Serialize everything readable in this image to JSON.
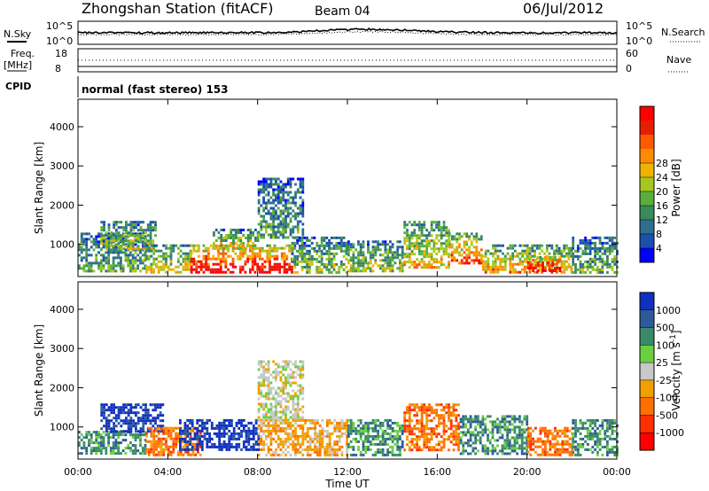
{
  "header": {
    "station": "Zhongshan Station (fitACF)",
    "beam": "Beam 04",
    "date": "06/Jul/2012"
  },
  "noise_panel": {
    "left_label": "N.Sky",
    "left_ticks": [
      "10^5",
      "10^0"
    ],
    "right_ticks": [
      "10^5",
      "10^0"
    ],
    "right_label": "N.Search"
  },
  "freq_panel": {
    "left_label_1": "Freq.",
    "left_label_2": "[MHz]",
    "left_ticks": [
      "18",
      "8"
    ],
    "right_ticks": [
      "60",
      "0"
    ],
    "right_label": "Nave"
  },
  "cpid": {
    "label": "CPID",
    "value": "normal (fast stereo) 153"
  },
  "chart_data": [
    {
      "type": "heatmap",
      "name": "power",
      "ylabel": "Slant Range [km]",
      "yticks": [
        "1000",
        "2000",
        "3000",
        "4000"
      ],
      "ytick_values": [
        1000,
        2000,
        3000,
        4000
      ],
      "ylim": [
        180,
        4700
      ],
      "colorbar": {
        "label": "Power [dB]",
        "ticks": [
          "4",
          "8",
          "12",
          "16",
          "20",
          "24",
          "28"
        ],
        "colors": [
          "#0000ff",
          "#1a4fb0",
          "#2e6e8e",
          "#3a8a5a",
          "#5aaf3a",
          "#a6c81e",
          "#f0b400",
          "#ff8c00",
          "#ff5a00",
          "#e61e00",
          "#ff0000"
        ]
      },
      "bands": [
        {
          "t": [
            0.0,
            3.0
          ],
          "r": [
            300,
            1300
          ],
          "level": 0.35
        },
        {
          "t": [
            1.0,
            3.5
          ],
          "r": [
            900,
            1600
          ],
          "level": 0.45
        },
        {
          "t": [
            3.0,
            5.0
          ],
          "r": [
            300,
            1000
          ],
          "level": 0.5
        },
        {
          "t": [
            5.0,
            9.5
          ],
          "r": [
            300,
            1000
          ],
          "level": 0.9
        },
        {
          "t": [
            6.0,
            8.0
          ],
          "r": [
            900,
            1400
          ],
          "level": 0.5
        },
        {
          "t": [
            8.0,
            10.0
          ],
          "r": [
            1200,
            2700
          ],
          "level": 0.3
        },
        {
          "t": [
            9.5,
            12.0
          ],
          "r": [
            300,
            1200
          ],
          "level": 0.4
        },
        {
          "t": [
            12.0,
            14.5
          ],
          "r": [
            300,
            1100
          ],
          "level": 0.45
        },
        {
          "t": [
            14.5,
            16.5
          ],
          "r": [
            400,
            1600
          ],
          "level": 0.55
        },
        {
          "t": [
            16.5,
            18.0
          ],
          "r": [
            500,
            1300
          ],
          "level": 0.7
        },
        {
          "t": [
            18.0,
            22.0
          ],
          "r": [
            300,
            1000
          ],
          "level": 0.6
        },
        {
          "t": [
            20.0,
            21.5
          ],
          "r": [
            300,
            700
          ],
          "level": 1.0
        },
        {
          "t": [
            22.0,
            24.0
          ],
          "r": [
            300,
            1200
          ],
          "level": 0.35
        }
      ]
    },
    {
      "type": "heatmap",
      "name": "velocity",
      "xlabel": "Time UT",
      "xticks": [
        "00:00",
        "04:00",
        "08:00",
        "12:00",
        "16:00",
        "20:00",
        "00:00"
      ],
      "xtick_hours": [
        0,
        4,
        8,
        12,
        16,
        20,
        24
      ],
      "xlim": [
        0,
        24
      ],
      "ylabel": "Slant Range [km]",
      "yticks": [
        "1000",
        "2000",
        "3000",
        "4000"
      ],
      "ytick_values": [
        1000,
        2000,
        3000,
        4000
      ],
      "ylim": [
        180,
        4700
      ],
      "colorbar": {
        "label": "Velocity [m s^-1]",
        "ticks": [
          "1000",
          "500",
          "100",
          "25",
          "-25",
          "-100",
          "-500",
          "-1000"
        ],
        "colors": [
          "#1030c0",
          "#2e5a9a",
          "#3a8a6a",
          "#6ad040",
          "#c8c8c8",
          "#f0a000",
          "#ff7000",
          "#ff3000",
          "#ff0000"
        ]
      },
      "bands": [
        {
          "t": [
            0.0,
            3.0
          ],
          "r": [
            300,
            900
          ],
          "v": 100
        },
        {
          "t": [
            1.0,
            3.8
          ],
          "r": [
            900,
            1600
          ],
          "v": 1000
        },
        {
          "t": [
            3.0,
            5.5
          ],
          "r": [
            300,
            1000
          ],
          "v": -500
        },
        {
          "t": [
            4.5,
            8.0
          ],
          "r": [
            400,
            1200
          ],
          "v": 1000
        },
        {
          "t": [
            8.0,
            10.0
          ],
          "r": [
            1200,
            2700
          ],
          "v": -25
        },
        {
          "t": [
            8.0,
            12.0
          ],
          "r": [
            300,
            1200
          ],
          "v": -100
        },
        {
          "t": [
            12.0,
            14.5
          ],
          "r": [
            300,
            1200
          ],
          "v": 100
        },
        {
          "t": [
            14.5,
            17.0
          ],
          "r": [
            400,
            1600
          ],
          "v": -500
        },
        {
          "t": [
            17.0,
            20.0
          ],
          "r": [
            300,
            1300
          ],
          "v": 100
        },
        {
          "t": [
            20.0,
            22.0
          ],
          "r": [
            300,
            1000
          ],
          "v": -500
        },
        {
          "t": [
            22.0,
            24.0
          ],
          "r": [
            300,
            1200
          ],
          "v": 100
        }
      ]
    }
  ],
  "colors": {
    "frame": "#000000",
    "background": "#ffffff"
  }
}
